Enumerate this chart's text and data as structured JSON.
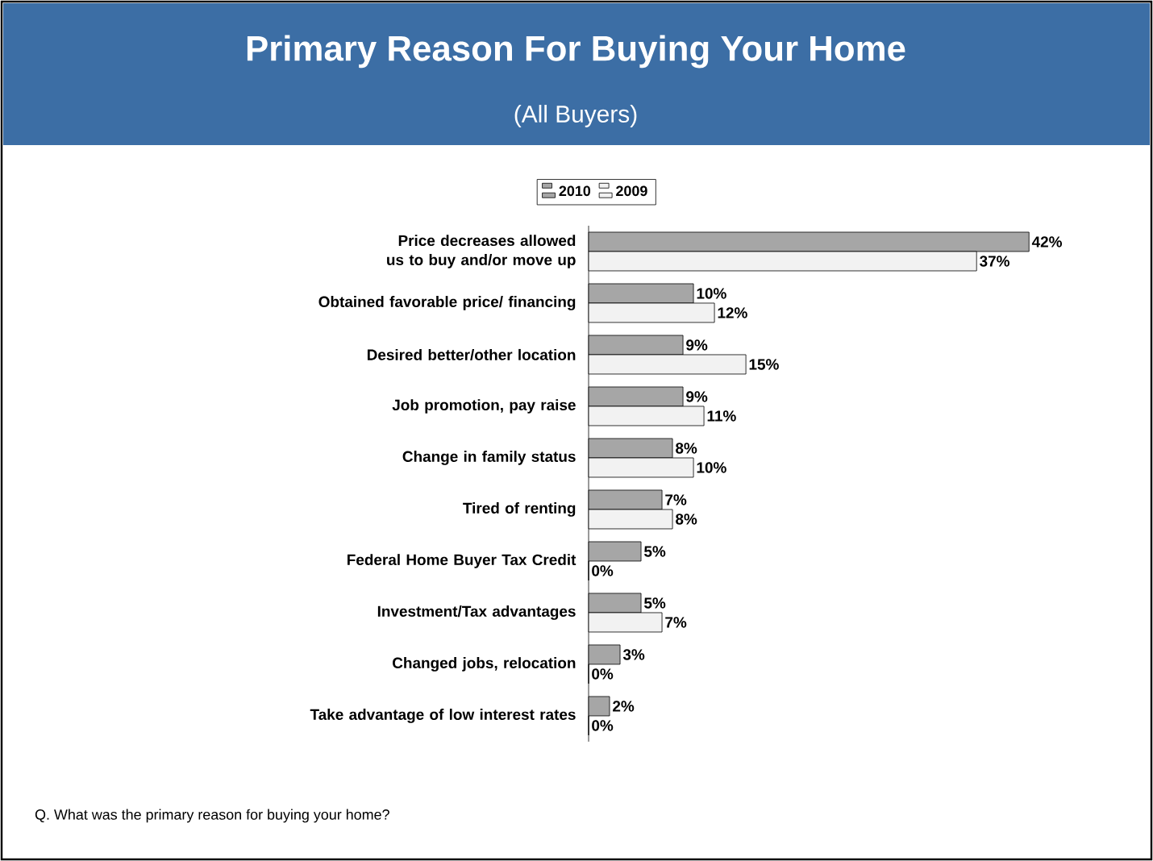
{
  "chart_data": {
    "type": "bar",
    "orientation": "horizontal",
    "title": "Primary Reason For Buying Your Home",
    "subtitle": "(All Buyers)",
    "categories": [
      "Price decreases allowed us to buy and/or move up",
      "Obtained favorable price/ financing",
      "Desired better/other location",
      "Job promotion, pay raise",
      "Change in family status",
      "Tired of renting",
      "Federal Home Buyer Tax Credit",
      "Investment/Tax advantages",
      "Changed jobs, relocation",
      "Take advantage of low interest rates"
    ],
    "series": [
      {
        "name": "2010",
        "color": "#a6a6a6",
        "values": [
          42,
          10,
          9,
          9,
          8,
          7,
          5,
          5,
          3,
          2
        ],
        "value_labels": [
          "42%",
          "10%",
          "9%",
          "9%",
          "8%",
          "7%",
          "5%",
          "5%",
          "3%",
          "2%"
        ]
      },
      {
        "name": "2009",
        "color": "#f2f2f2",
        "values": [
          37,
          12,
          15,
          11,
          10,
          8,
          0,
          7,
          0,
          0
        ],
        "value_labels": [
          "37%",
          "12%",
          "15%",
          "11%",
          "10%",
          "8%",
          "0%",
          "7%",
          "0%",
          "0%"
        ]
      }
    ],
    "legend": "top",
    "annotations": [
      "Q. What was the primary reason for buying your home?"
    ]
  }
}
